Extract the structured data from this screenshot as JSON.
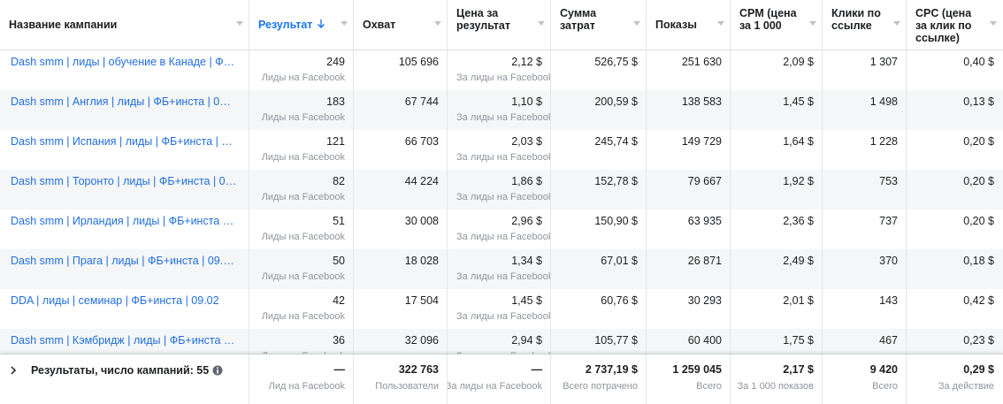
{
  "table": {
    "headers": [
      "Название кампании",
      "Результат",
      "Охват",
      "Цена за результат",
      "Сумма затрат",
      "Показы",
      "CPM (цена за 1 000",
      "Клики по ссылке",
      "CPC (цена за клик по ссылке)"
    ],
    "rows": [
      {
        "cells": [
          "Dash smm | лиды | обучение в Канаде | Ф…",
          "249",
          "105 696",
          "2,12 $",
          "526,75 $",
          "251 630",
          "2,09 $",
          "1 307",
          "0,40 $"
        ],
        "notes": [
          "Лиды на Facebook",
          "За лиды на Facebook"
        ]
      },
      {
        "cells": [
          "Dash smm | Англия | лиды | ФБ+инста | 0…",
          "183",
          "67 744",
          "1,10 $",
          "200,59 $",
          "138 583",
          "1,45 $",
          "1 498",
          "0,13 $"
        ],
        "notes": [
          "Лиды на Facebook",
          "За лиды на Facebook"
        ]
      },
      {
        "cells": [
          "Dash smm | Испания | лиды | ФБ+инста | …",
          "121",
          "66 703",
          "2,03 $",
          "245,74 $",
          "149 729",
          "1,64 $",
          "1 228",
          "0,20 $"
        ],
        "notes": [
          "Лиды на Facebook",
          "За лиды на Facebook"
        ]
      },
      {
        "cells": [
          "Dash smm | Торонто | лиды | ФБ+инста | 0…",
          "82",
          "44 224",
          "1,86 $",
          "152,78 $",
          "79 667",
          "1,92 $",
          "753",
          "0,20 $"
        ],
        "notes": [
          "Лиды на Facebook",
          "За лиды на Facebook"
        ]
      },
      {
        "cells": [
          "Dash smm | Ирландия | лиды | ФБ+инста …",
          "51",
          "30 008",
          "2,96 $",
          "150,90 $",
          "63 935",
          "2,36 $",
          "737",
          "0,20 $"
        ],
        "notes": [
          "Лиды на Facebook",
          "За лиды на Facebook"
        ]
      },
      {
        "cells": [
          "Dash smm | Прага | лиды | ФБ+инста | 09.…",
          "50",
          "18 028",
          "1,34 $",
          "67,01 $",
          "26 871",
          "2,49 $",
          "370",
          "0,18 $"
        ],
        "notes": [
          "Лиды на Facebook",
          "За лиды на Facebook"
        ]
      },
      {
        "cells": [
          "DDA | лиды | семинар | ФБ+инста | 09.02",
          "42",
          "17 504",
          "1,45 $",
          "60,76 $",
          "30 293",
          "2,01 $",
          "143",
          "0,42 $"
        ],
        "notes": [
          "Лиды на Facebook",
          "За лиды на Facebook"
        ]
      },
      {
        "cells": [
          "Dash smm | Кэмбридж | лиды | ФБ+инста …",
          "36",
          "32 096",
          "2,94 $",
          "105,77 $",
          "60 400",
          "1,75 $",
          "467",
          "0,23 $"
        ],
        "notes": [
          "Лиды на Facebook",
          "За лиды на Facebook"
        ]
      }
    ],
    "footer": {
      "label": "Результаты, число кампаний: 55",
      "cells": [
        [
          "—",
          "Лид на Facebook"
        ],
        [
          "322 763",
          "Пользователи"
        ],
        [
          "—",
          "За лиды на Facebook"
        ],
        [
          "2 737,19 $",
          "Всего потрачено"
        ],
        [
          "1 259 045",
          "Всего"
        ],
        [
          "2,17 $",
          "За 1 000 показов"
        ],
        [
          "9 420",
          "Всего"
        ],
        [
          "0,29 $",
          "За действие"
        ]
      ]
    }
  }
}
